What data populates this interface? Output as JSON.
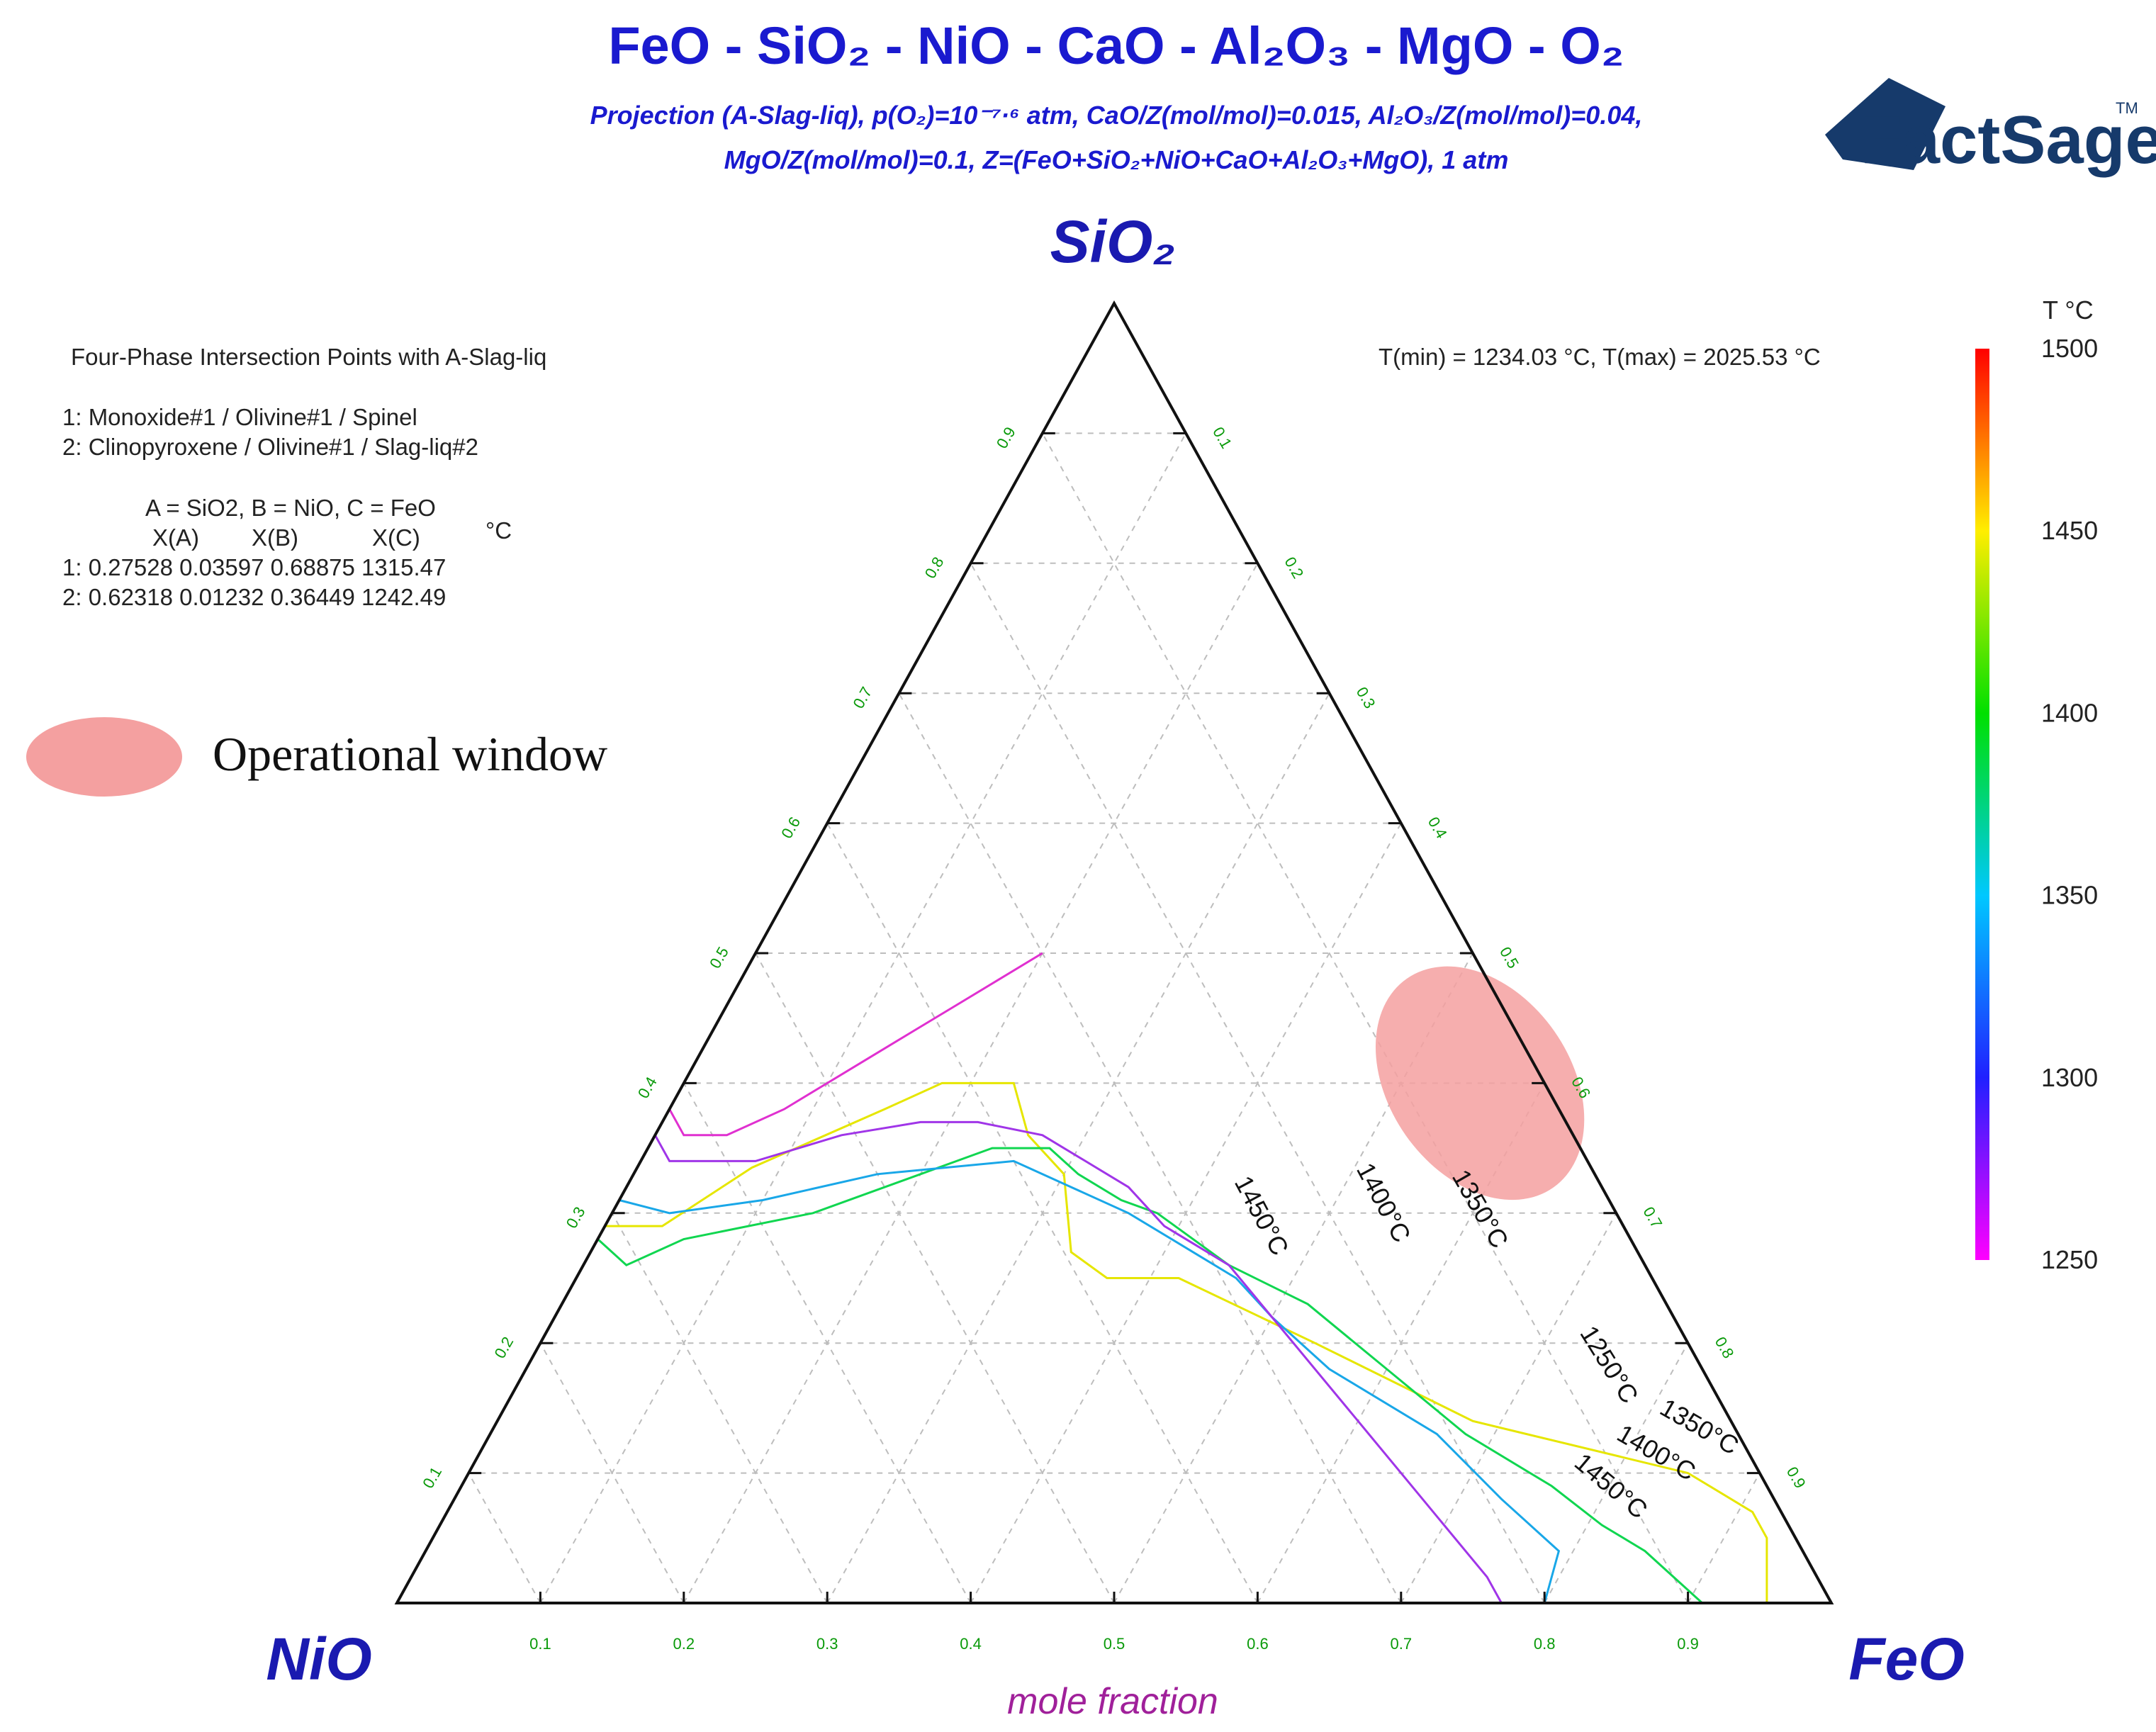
{
  "header": {
    "title": "FeO - SiO₂ - NiO - CaO - Al₂O₃ - MgO - O₂",
    "subtitle_line1": "Projection (A-Slag-liq), p(O₂)=10⁻⁷·⁶ atm, CaO/Z(mol/mol)=0.015, Al₂O₃/Z(mol/mol)=0.04,",
    "subtitle_line2": "MgO/Z(mol/mol)=0.1, Z=(FeO+SiO₂+NiO+CaO+Al₂O₃+MgO), 1 atm"
  },
  "logo": {
    "text": "FactSage",
    "tm": "TM",
    "color": "#163a6b"
  },
  "corners": {
    "top": "SiO₂",
    "left": "NiO",
    "right": "FeO"
  },
  "info_panel": {
    "heading": "Four-Phase Intersection Points with A-Slag-liq",
    "points": [
      "1:   Monoxide#1 / Olivine#1 / Spinel",
      "2:   Clinopyroxene / Olivine#1 / Slag-liq#2"
    ],
    "component_def": "A = SiO2,  B = NiO,  C = FeO",
    "columns": [
      "X(A)",
      "X(B)",
      "X(C)",
      "°C"
    ],
    "rows": [
      "1:   0.27528  0.03597  0.68875  1315.47",
      "2:   0.62318  0.01232  0.36449  1242.49"
    ]
  },
  "trange_text": "T(min) = 1234.03 °C, T(max) = 2025.53 °C",
  "colorbar": {
    "title": "T °C",
    "labels": [
      "1500",
      "1450",
      "1400",
      "1350",
      "1300",
      "1250"
    ],
    "values": [
      1500,
      1450,
      1400,
      1350,
      1300,
      1250
    ]
  },
  "legend": {
    "label": "Operational window",
    "color": "#f4a0a0"
  },
  "chart_data": {
    "type": "ternary",
    "title": "FeO - SiO₂ - NiO - CaO - Al₂O₃ - MgO - O₂",
    "vertices": {
      "top": "SiO₂",
      "left": "NiO",
      "right": "FeO"
    },
    "xlabel": "mole fraction",
    "grid": true,
    "left_ticks": [
      "0.1",
      "0.2",
      "0.3",
      "0.4",
      "0.5",
      "0.6",
      "0.7",
      "0.8",
      "0.9"
    ],
    "right_ticks": [
      "0.1",
      "0.2",
      "0.3",
      "0.4",
      "0.5",
      "0.6",
      "0.7",
      "0.8",
      "0.9"
    ],
    "bottom_ticks": [
      "0.9",
      "0.8",
      "0.7",
      "0.6",
      "0.5",
      "0.4",
      "0.3",
      "0.2",
      "0.1"
    ],
    "isotherms": [
      {
        "temperature": 1450,
        "color": "#e6e600",
        "label": "1450°C",
        "points": [
          [
            0.29,
            0.0
          ],
          [
            0.29,
            0.04
          ],
          [
            0.335,
            0.08
          ],
          [
            0.38,
            0.15
          ],
          [
            0.4,
            0.18
          ],
          [
            0.4,
            0.23
          ],
          [
            0.36,
            0.26
          ],
          [
            0.33,
            0.3
          ],
          [
            0.27,
            0.335
          ],
          [
            0.25,
            0.37
          ],
          [
            0.25,
            0.42
          ],
          [
            0.2,
            0.54
          ],
          [
            0.14,
            0.68
          ],
          [
            0.1,
            0.85
          ],
          [
            0.07,
            0.91
          ],
          [
            0.05,
            0.93
          ],
          [
            0.03,
            0.94
          ],
          [
            0.0,
            0.955
          ]
        ]
      },
      {
        "temperature": 1400,
        "color": "#10d650",
        "label": "1400°C",
        "points": [
          [
            0.28,
            0.0
          ],
          [
            0.26,
            0.03
          ],
          [
            0.28,
            0.06
          ],
          [
            0.3,
            0.14
          ],
          [
            0.33,
            0.2
          ],
          [
            0.35,
            0.24
          ],
          [
            0.35,
            0.28
          ],
          [
            0.33,
            0.31
          ],
          [
            0.31,
            0.35
          ],
          [
            0.3,
            0.38
          ],
          [
            0.26,
            0.45
          ],
          [
            0.23,
            0.52
          ],
          [
            0.18,
            0.6
          ],
          [
            0.13,
            0.68
          ],
          [
            0.09,
            0.76
          ],
          [
            0.06,
            0.81
          ],
          [
            0.04,
            0.85
          ],
          [
            0.0,
            0.91
          ]
        ]
      },
      {
        "temperature": 1350,
        "color": "#19a7e8",
        "label": "1350°C",
        "points": [
          [
            0.31,
            0.0
          ],
          [
            0.3,
            0.04
          ],
          [
            0.31,
            0.1
          ],
          [
            0.33,
            0.17
          ],
          [
            0.34,
            0.26
          ],
          [
            0.32,
            0.31
          ],
          [
            0.3,
            0.36
          ],
          [
            0.27,
            0.42
          ],
          [
            0.25,
            0.46
          ],
          [
            0.22,
            0.5
          ],
          [
            0.18,
            0.56
          ],
          [
            0.13,
            0.66
          ],
          [
            0.08,
            0.73
          ],
          [
            0.04,
            0.79
          ],
          [
            0.0,
            0.8
          ]
        ]
      },
      {
        "temperature": 1300,
        "color": "#a035e8",
        "label": "",
        "points": [
          [
            0.36,
            0.0
          ],
          [
            0.34,
            0.02
          ],
          [
            0.34,
            0.08
          ],
          [
            0.36,
            0.13
          ],
          [
            0.37,
            0.18
          ],
          [
            0.37,
            0.22
          ],
          [
            0.36,
            0.27
          ],
          [
            0.34,
            0.31
          ],
          [
            0.32,
            0.35
          ],
          [
            0.29,
            0.39
          ],
          [
            0.26,
            0.45
          ],
          [
            0.22,
            0.5
          ],
          [
            0.18,
            0.55
          ],
          [
            0.14,
            0.6
          ],
          [
            0.1,
            0.65
          ],
          [
            0.06,
            0.7
          ],
          [
            0.02,
            0.75
          ],
          [
            0.0,
            0.77
          ]
        ]
      },
      {
        "temperature": 1250,
        "color": "#e030d0",
        "label": "1250°C",
        "points": [
          [
            0.38,
            0.0
          ],
          [
            0.36,
            0.02
          ],
          [
            0.36,
            0.05
          ],
          [
            0.38,
            0.08
          ],
          [
            0.4,
            0.1
          ],
          [
            0.42,
            0.12
          ],
          [
            0.44,
            0.14
          ],
          [
            0.46,
            0.16
          ],
          [
            0.48,
            0.18
          ],
          [
            0.5,
            0.2
          ]
        ]
      }
    ],
    "operational_window": {
      "center_SiO2": 0.4,
      "center_FeO": 0.555,
      "color": "#f4a0a0"
    },
    "colorbar_range": [
      1250,
      1500
    ]
  }
}
